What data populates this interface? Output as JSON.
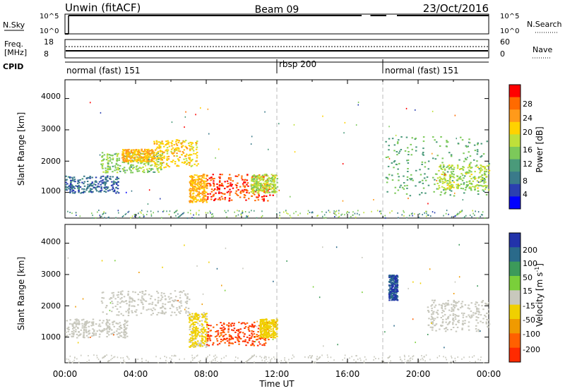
{
  "header": {
    "title_left": "Unwin (fitACF)",
    "title_center": "Beam 09",
    "title_right": "23/Oct/2016"
  },
  "nsky": {
    "label": "N.Sky",
    "ticks": [
      "10^5",
      "10^0"
    ],
    "right_label": "N.Search",
    "right_ticks": [
      "10^5",
      "10^0"
    ]
  },
  "freq": {
    "label_line1": "Freq.",
    "label_line2": "[MHz]",
    "ticks": [
      "18",
      "8"
    ],
    "right_label": "Nave",
    "right_ticks": [
      "60",
      "0"
    ]
  },
  "cpid": {
    "label": "CPID",
    "segments": [
      {
        "name": "normal (fast) 151",
        "start_h": 0,
        "end_h": 12
      },
      {
        "name": "rbsp 200",
        "start_h": 12,
        "end_h": 18
      },
      {
        "name": "normal (fast) 151",
        "start_h": 18,
        "end_h": 24
      }
    ]
  },
  "power_panel": {
    "ylabel": "Slant Range [km]",
    "yticks": [
      "4000",
      "3000",
      "2000",
      "1000"
    ],
    "colorbar_label": "Power [dB]",
    "colorbar_ticks": [
      "28",
      "24",
      "20",
      "16",
      "12",
      "8",
      "4"
    ],
    "colorbar_colors": [
      "#ff0000",
      "#ff6a00",
      "#ff9a1a",
      "#ffd200",
      "#bfe03a",
      "#7cc95a",
      "#4a9a7a",
      "#3a7a8a",
      "#2b3fb0",
      "#0000ff"
    ]
  },
  "velocity_panel": {
    "ylabel": "Slant Range [km]",
    "yticks": [
      "4000",
      "3000",
      "2000",
      "1000"
    ],
    "colorbar_label": "Velocity [m s",
    "colorbar_label_sup": "-1",
    "colorbar_label_end": "]",
    "colorbar_ticks": [
      "200",
      "100",
      "50",
      "15",
      "-15",
      "-50",
      "-100",
      "-200"
    ],
    "colorbar_colors": [
      "#2233aa",
      "#2a6a8a",
      "#3c9a5a",
      "#7acf3a",
      "#c8c8bd",
      "#f0d000",
      "#f09a00",
      "#ff6000",
      "#ff2a00"
    ]
  },
  "x_axis": {
    "ticks": [
      "00:00",
      "04:00",
      "08:00",
      "12:00",
      "16:00",
      "20:00",
      "00:00"
    ],
    "label": "Time UT"
  },
  "chart_data": [
    {
      "type": "heatmap",
      "title": "Power [dB]",
      "xlabel": "Time UT",
      "ylabel": "Slant Range [km]",
      "xlim_hours": [
        0,
        24
      ],
      "ylim_km": [
        180,
        4600
      ],
      "zlim": [
        0,
        30
      ],
      "regions": [
        {
          "t": [
            0.0,
            3.0
          ],
          "r": [
            1000,
            1550
          ],
          "value": 6
        },
        {
          "t": [
            2.0,
            5.5
          ],
          "r": [
            1650,
            2300
          ],
          "value": 14
        },
        {
          "t": [
            3.2,
            5.0
          ],
          "r": [
            2000,
            2400
          ],
          "value": 22
        },
        {
          "t": [
            5.0,
            7.5
          ],
          "r": [
            1800,
            2700
          ],
          "value": 20
        },
        {
          "t": [
            7.0,
            8.0
          ],
          "r": [
            700,
            1600
          ],
          "value": 22
        },
        {
          "t": [
            8.0,
            11.8
          ],
          "r": [
            750,
            1600
          ],
          "value": 28
        },
        {
          "t": [
            10.5,
            12.0
          ],
          "r": [
            1000,
            1600
          ],
          "value": 16
        },
        {
          "t": [
            18.0,
            24.0
          ],
          "r": [
            900,
            2800
          ],
          "value": 12
        },
        {
          "t": [
            21.0,
            24.0
          ],
          "r": [
            1100,
            1900
          ],
          "value": 16
        }
      ]
    },
    {
      "type": "heatmap",
      "title": "Velocity [m s-1]",
      "xlabel": "Time UT",
      "ylabel": "Slant Range [km]",
      "xlim_hours": [
        0,
        24
      ],
      "ylim_km": [
        180,
        4600
      ],
      "zlim": [
        -250,
        250
      ],
      "regions": [
        {
          "t": [
            0.0,
            3.5
          ],
          "r": [
            1000,
            1600
          ],
          "value": 0
        },
        {
          "t": [
            2.0,
            7.0
          ],
          "r": [
            1700,
            2500
          ],
          "value": 0
        },
        {
          "t": [
            7.0,
            8.0
          ],
          "r": [
            700,
            1800
          ],
          "value": -40
        },
        {
          "t": [
            8.0,
            11.5
          ],
          "r": [
            750,
            1500
          ],
          "value": -220
        },
        {
          "t": [
            11.0,
            12.0
          ],
          "r": [
            1000,
            1600
          ],
          "value": -80
        },
        {
          "t": [
            18.3,
            18.8
          ],
          "r": [
            2200,
            3000
          ],
          "value": 220
        },
        {
          "t": [
            20.5,
            24.0
          ],
          "r": [
            1200,
            2200
          ],
          "value": 0
        }
      ]
    }
  ]
}
